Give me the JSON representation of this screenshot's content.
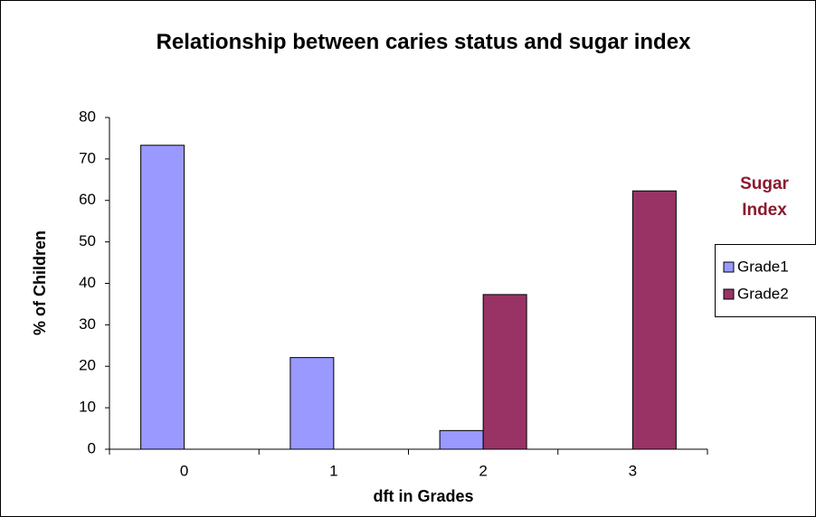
{
  "chart_data": {
    "type": "bar",
    "title": "Relationship between caries status and sugar index",
    "x_label": "dft in Grades",
    "y_label": "% of Children",
    "legend_title": "Sugar Index",
    "categories": [
      "0",
      "1",
      "2",
      "3"
    ],
    "series": [
      {
        "name": "Grade1",
        "color": "#9999ff",
        "values": [
          73.3,
          22.1,
          4.5,
          0
        ]
      },
      {
        "name": "Grade2",
        "color": "#993366",
        "values": [
          0,
          0,
          37.3,
          62.3
        ]
      }
    ],
    "ylim": [
      0,
      80
    ],
    "yticks": [
      0,
      10,
      20,
      30,
      40,
      50,
      60,
      70,
      80
    ],
    "grid": false,
    "legend": "right"
  }
}
